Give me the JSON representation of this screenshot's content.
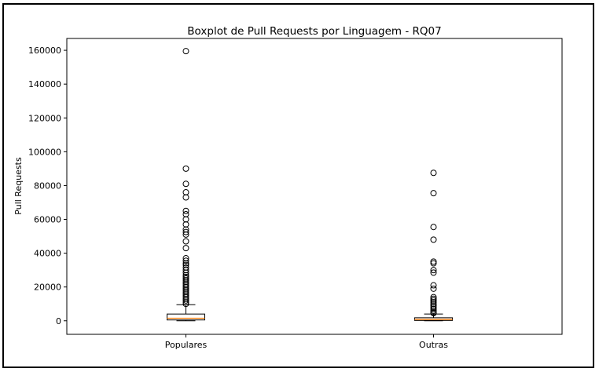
{
  "chart_data": {
    "type": "boxplot",
    "title": "Boxplot de Pull Requests por Linguagem - RQ07",
    "xlabel": "",
    "ylabel": "Pull Requests",
    "ylim": [
      -8000,
      167000
    ],
    "yticks": [
      0,
      20000,
      40000,
      60000,
      80000,
      100000,
      120000,
      140000,
      160000
    ],
    "ytick_labels": [
      "0",
      "20000",
      "40000",
      "60000",
      "80000",
      "100000",
      "120000",
      "140000",
      "160000"
    ],
    "categories": [
      "Populares",
      "Outras"
    ],
    "grid": false,
    "legend": "none",
    "series": [
      {
        "category": "Populares",
        "whisker_low": 0,
        "q1": 500,
        "median": 1500,
        "q3": 4000,
        "whisker_high": 9500,
        "outliers": [
          159500,
          90000,
          81000,
          76000,
          73000,
          65000,
          63000,
          60000,
          57000,
          54000,
          52500,
          51000,
          47000,
          43000,
          37000,
          35500,
          34000,
          33000,
          31500,
          30000,
          28500,
          27000,
          26000,
          25000,
          24000,
          23000,
          22000,
          21000,
          20000,
          19000,
          18000,
          17000,
          16000,
          15000,
          14000,
          13000,
          12000,
          11000,
          10000
        ]
      },
      {
        "category": "Outras",
        "whisker_low": 0,
        "q1": 200,
        "median": 800,
        "q3": 1800,
        "whisker_high": 4000,
        "outliers": [
          87500,
          75500,
          55500,
          48000,
          35000,
          34000,
          30000,
          28500,
          21000,
          19000,
          14000,
          13000,
          12000,
          11000,
          10000,
          9000,
          8000,
          7000,
          6000,
          5000,
          4500
        ]
      }
    ],
    "colors": {
      "box_edge": "#000000",
      "median": "#ff7f0e",
      "box_fill": "#ffffff"
    }
  }
}
